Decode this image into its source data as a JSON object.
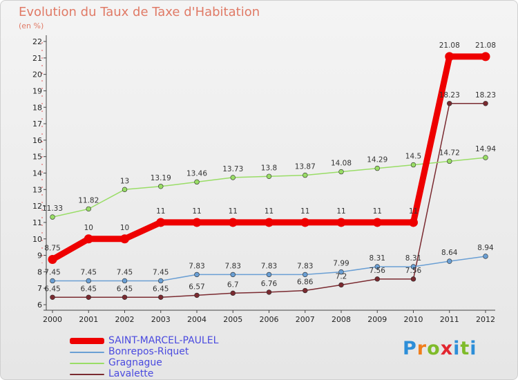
{
  "chart_data": {
    "type": "line",
    "title": "Evolution du Taux de Taxe d'Habitation",
    "subtitle": "(en %)",
    "x": [
      "2000",
      "2001",
      "2002",
      "2003",
      "2004",
      "2005",
      "2006",
      "2007",
      "2008",
      "2009",
      "2010",
      "2011",
      "2012"
    ],
    "ylim": [
      6,
      22
    ],
    "yticks": [
      6,
      7,
      8,
      9,
      10,
      11,
      12,
      13,
      14,
      15,
      16,
      17,
      18,
      19,
      20,
      21,
      22
    ],
    "grid": false,
    "legend_position": "bottom-left",
    "series": [
      {
        "name": "SAINT-MARCEL-PAULEL",
        "color": "#ee0000",
        "values": [
          8.75,
          10,
          10,
          11,
          11,
          11,
          11,
          11,
          11,
          11,
          11,
          21.08,
          21.08
        ],
        "labels": [
          "8.75",
          "10",
          "10",
          "11",
          "11",
          "11",
          "11",
          "11",
          "11",
          "11",
          "11",
          "21.08",
          "21.08"
        ]
      },
      {
        "name": "Bonrepos-Riquet",
        "color": "#6a9fd4",
        "values": [
          7.45,
          7.45,
          7.45,
          7.45,
          7.83,
          7.83,
          7.83,
          7.83,
          7.99,
          8.31,
          8.31,
          8.64,
          8.94
        ],
        "labels": [
          "7.45",
          "7.45",
          "7.45",
          "7.45",
          "7.83",
          "7.83",
          "7.83",
          "7.83",
          "7.99",
          "8.31",
          "8.31",
          "8.64",
          "8.94"
        ]
      },
      {
        "name": "Gragnague",
        "color": "#99dd66",
        "values": [
          11.33,
          11.82,
          13,
          13.19,
          13.46,
          13.73,
          13.8,
          13.87,
          14.08,
          14.29,
          14.5,
          14.72,
          14.94
        ],
        "labels": [
          "11.33",
          "11.82",
          "13",
          "13.19",
          "13.46",
          "13.73",
          "13.8",
          "13.87",
          "14.08",
          "14.29",
          "14.5",
          "14.72",
          "14.94"
        ]
      },
      {
        "name": "Lavalette",
        "color": "#7a2a30",
        "values": [
          6.45,
          6.45,
          6.45,
          6.45,
          6.57,
          6.7,
          6.76,
          6.86,
          7.2,
          7.56,
          7.56,
          18.23,
          18.23
        ],
        "labels": [
          "6.45",
          "6.45",
          "6.45",
          "6.45",
          "6.57",
          "6.7",
          "6.76",
          "6.86",
          "7.2",
          "7.56",
          "7.56",
          "18.23",
          "18.23"
        ]
      }
    ]
  },
  "branding": {
    "logo_letters": [
      "P",
      "r",
      "o",
      "x",
      "i",
      "t",
      "i"
    ]
  }
}
